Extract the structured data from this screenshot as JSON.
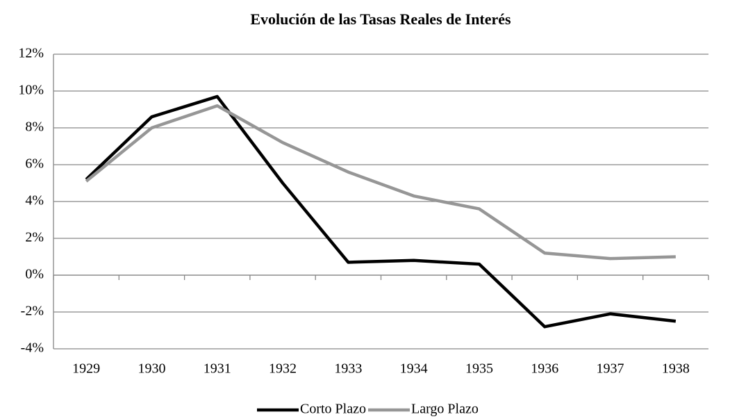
{
  "chart_data": {
    "type": "line",
    "title": "Evolución de las Tasas Reales de Interés",
    "categories": [
      "1929",
      "1930",
      "1931",
      "1932",
      "1933",
      "1934",
      "1935",
      "1936",
      "1937",
      "1938"
    ],
    "series": [
      {
        "name": "Corto Plazo",
        "color": "#000000",
        "values": [
          5.2,
          8.6,
          9.7,
          5.0,
          0.7,
          0.8,
          0.6,
          -2.8,
          -2.1,
          -2.5
        ]
      },
      {
        "name": "Largo Plazo",
        "color": "#969696",
        "values": [
          5.1,
          8.0,
          9.2,
          7.2,
          5.6,
          4.3,
          3.6,
          1.2,
          0.9,
          1.0
        ]
      }
    ],
    "ylim": [
      -4,
      12
    ],
    "yticks": [
      {
        "value": -4,
        "label": "-4%"
      },
      {
        "value": -2,
        "label": "-2%"
      },
      {
        "value": 0,
        "label": "0%"
      },
      {
        "value": 2,
        "label": "2%"
      },
      {
        "value": 4,
        "label": "4%"
      },
      {
        "value": 6,
        "label": "6%"
      },
      {
        "value": 8,
        "label": "8%"
      },
      {
        "value": 10,
        "label": "10%"
      },
      {
        "value": 12,
        "label": "12%"
      }
    ],
    "grid": true,
    "legend": "bottom"
  }
}
